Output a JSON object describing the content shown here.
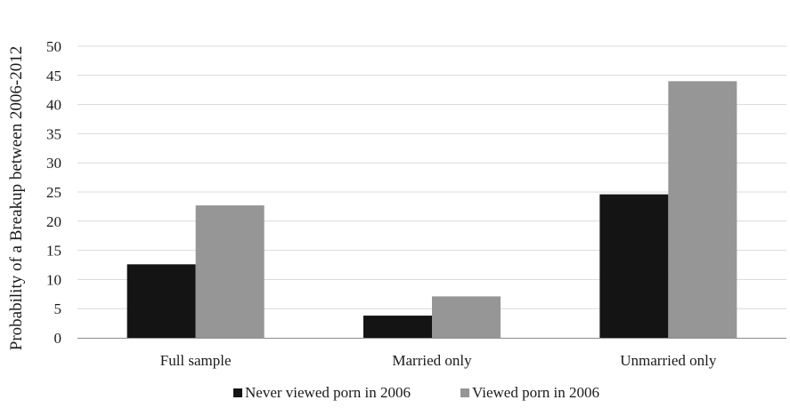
{
  "chart_data": {
    "type": "bar",
    "title": "",
    "xlabel": "",
    "ylabel": "Probability of a Breakup between 2006-2012",
    "categories": [
      "Full sample",
      "Married only",
      "Unmarried only"
    ],
    "series": [
      {
        "name": "Never viewed porn in 2006",
        "values": [
          12.6,
          3.8,
          24.6
        ],
        "color": "#141414"
      },
      {
        "name": "Viewed porn in 2006",
        "values": [
          22.7,
          7.1,
          44.0
        ],
        "color": "#969696"
      }
    ],
    "ylim": [
      0,
      50
    ],
    "yticks": [
      "0",
      "5",
      "10",
      "15",
      "20",
      "25",
      "30",
      "35",
      "40",
      "45",
      "50"
    ],
    "grid": true,
    "legend_position": "bottom"
  }
}
